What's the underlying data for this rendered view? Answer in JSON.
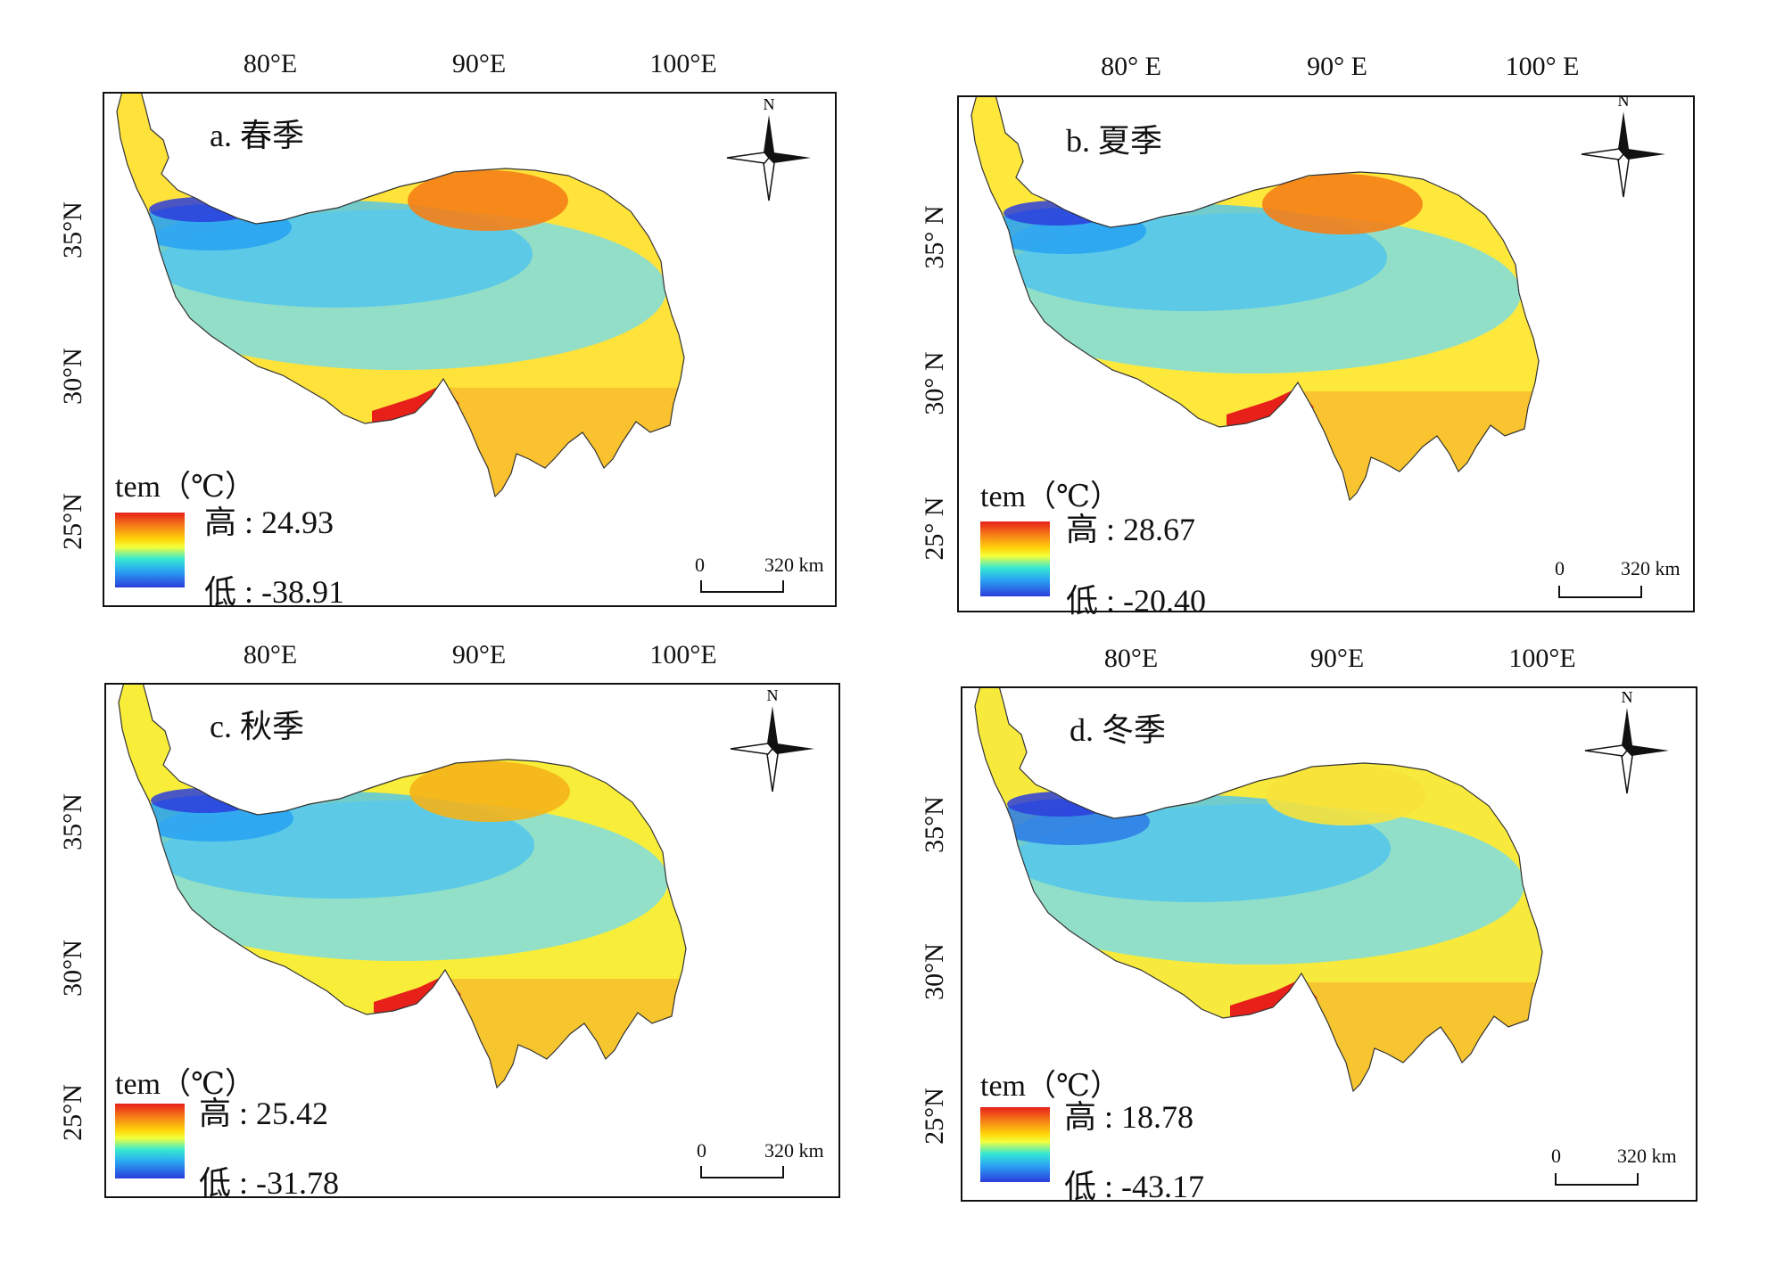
{
  "lon_labels_a": [
    "80°E",
    "90°E",
    "100°E"
  ],
  "lon_labels_b": [
    "80° E",
    "90° E",
    "100° E"
  ],
  "lon_labels_c": [
    "80°E",
    "90°E",
    "100°E"
  ],
  "lon_labels_d": [
    "80°E",
    "90°E",
    "100°E"
  ],
  "lat_labels_a": [
    "35°N",
    "30°N",
    "25°N"
  ],
  "lat_labels_b": [
    "35° N",
    "30° N",
    "25° N"
  ],
  "lat_labels_c": [
    "35°N",
    "30°N",
    "25°N"
  ],
  "lat_labels_d": [
    "35°N",
    "30°N",
    "25°N"
  ],
  "legend_title": "tem（℃）",
  "north_label": "N",
  "scale": {
    "zero": "0",
    "distance": "320 km"
  },
  "panels": [
    {
      "title": "a. 春季",
      "high": "高 : 24.93",
      "low": "低 : -38.91"
    },
    {
      "title": "b. 夏季",
      "high": "高 : 28.67",
      "low": "低 : -20.40"
    },
    {
      "title": "c. 秋季",
      "high": "高 : 25.42",
      "low": "低 : -31.78"
    },
    {
      "title": "d. 冬季",
      "high": "高 : 18.78",
      "low": "低 : -43.17"
    }
  ],
  "colors": {
    "high": "#e8201a",
    "warm": "#f57f17",
    "mid": "#ffd60a",
    "cool": "#35e8d2",
    "cold": "#2aa4f3",
    "low": "#2b3ddc"
  }
}
